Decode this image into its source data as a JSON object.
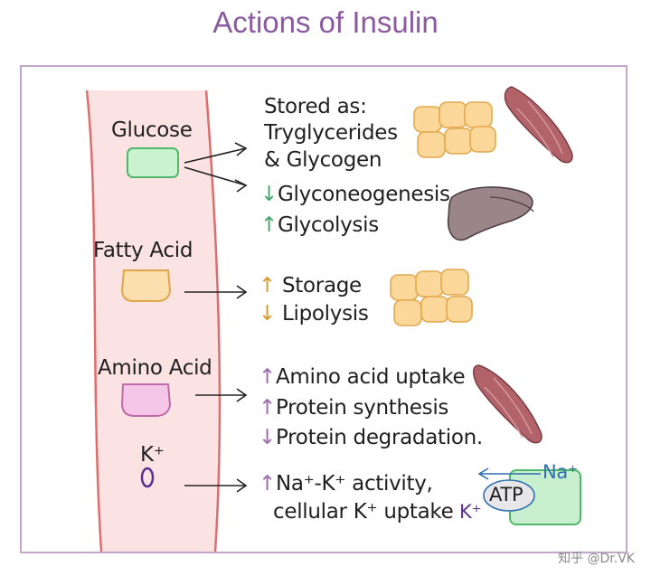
{
  "title": "Actions of Insulin",
  "vessel_labels": {
    "glucose": "Glucose",
    "fatty_acid": "Fatty Acid",
    "amino_acid": "Amino Acid",
    "potassium": "K⁺"
  },
  "glucose_effects": {
    "stored_line1": "Stored as:",
    "stored_line2": "Tryglycerides",
    "stored_line3": "& Glycogen",
    "gluconeo_arrow": "↓",
    "gluconeo": "Glyconeogenesis",
    "glycolysis_arrow": "↑",
    "glycolysis": "Glycolysis"
  },
  "fatty_effects": {
    "storage_arrow": "↑",
    "storage": "Storage",
    "lipolysis_arrow": "↓",
    "lipolysis": "Lipolysis"
  },
  "amino_effects": {
    "uptake_arrow": "↑",
    "uptake": "Amino acid uptake",
    "synthesis_arrow": "↑",
    "synthesis": "Protein synthesis",
    "degradation_arrow": "↓",
    "degradation": "Protein degradation."
  },
  "potassium_effects": {
    "activity_arrow": "↑",
    "activity": "Na⁺-K⁺ activity,",
    "uptake": "cellular K⁺ uptake"
  },
  "pump": {
    "na": "Na⁺",
    "atp": "ATP",
    "k": "K⁺"
  },
  "watermark": "知乎 @Dr.VK",
  "colors": {
    "title": "#8b5aa0",
    "frame": "#c2a6cb",
    "vessel_fill": "#fbe3e4",
    "vessel_wall": "#e06d6d",
    "glucose_box": "#c9f2cf",
    "fatty_box": "#fbdfae",
    "amino_box": "#f6c6e8",
    "fat_cells": "#fbd79a",
    "muscle": "#b26369",
    "liver": "#9a8589",
    "pump_cell": "#c8f0cf"
  }
}
